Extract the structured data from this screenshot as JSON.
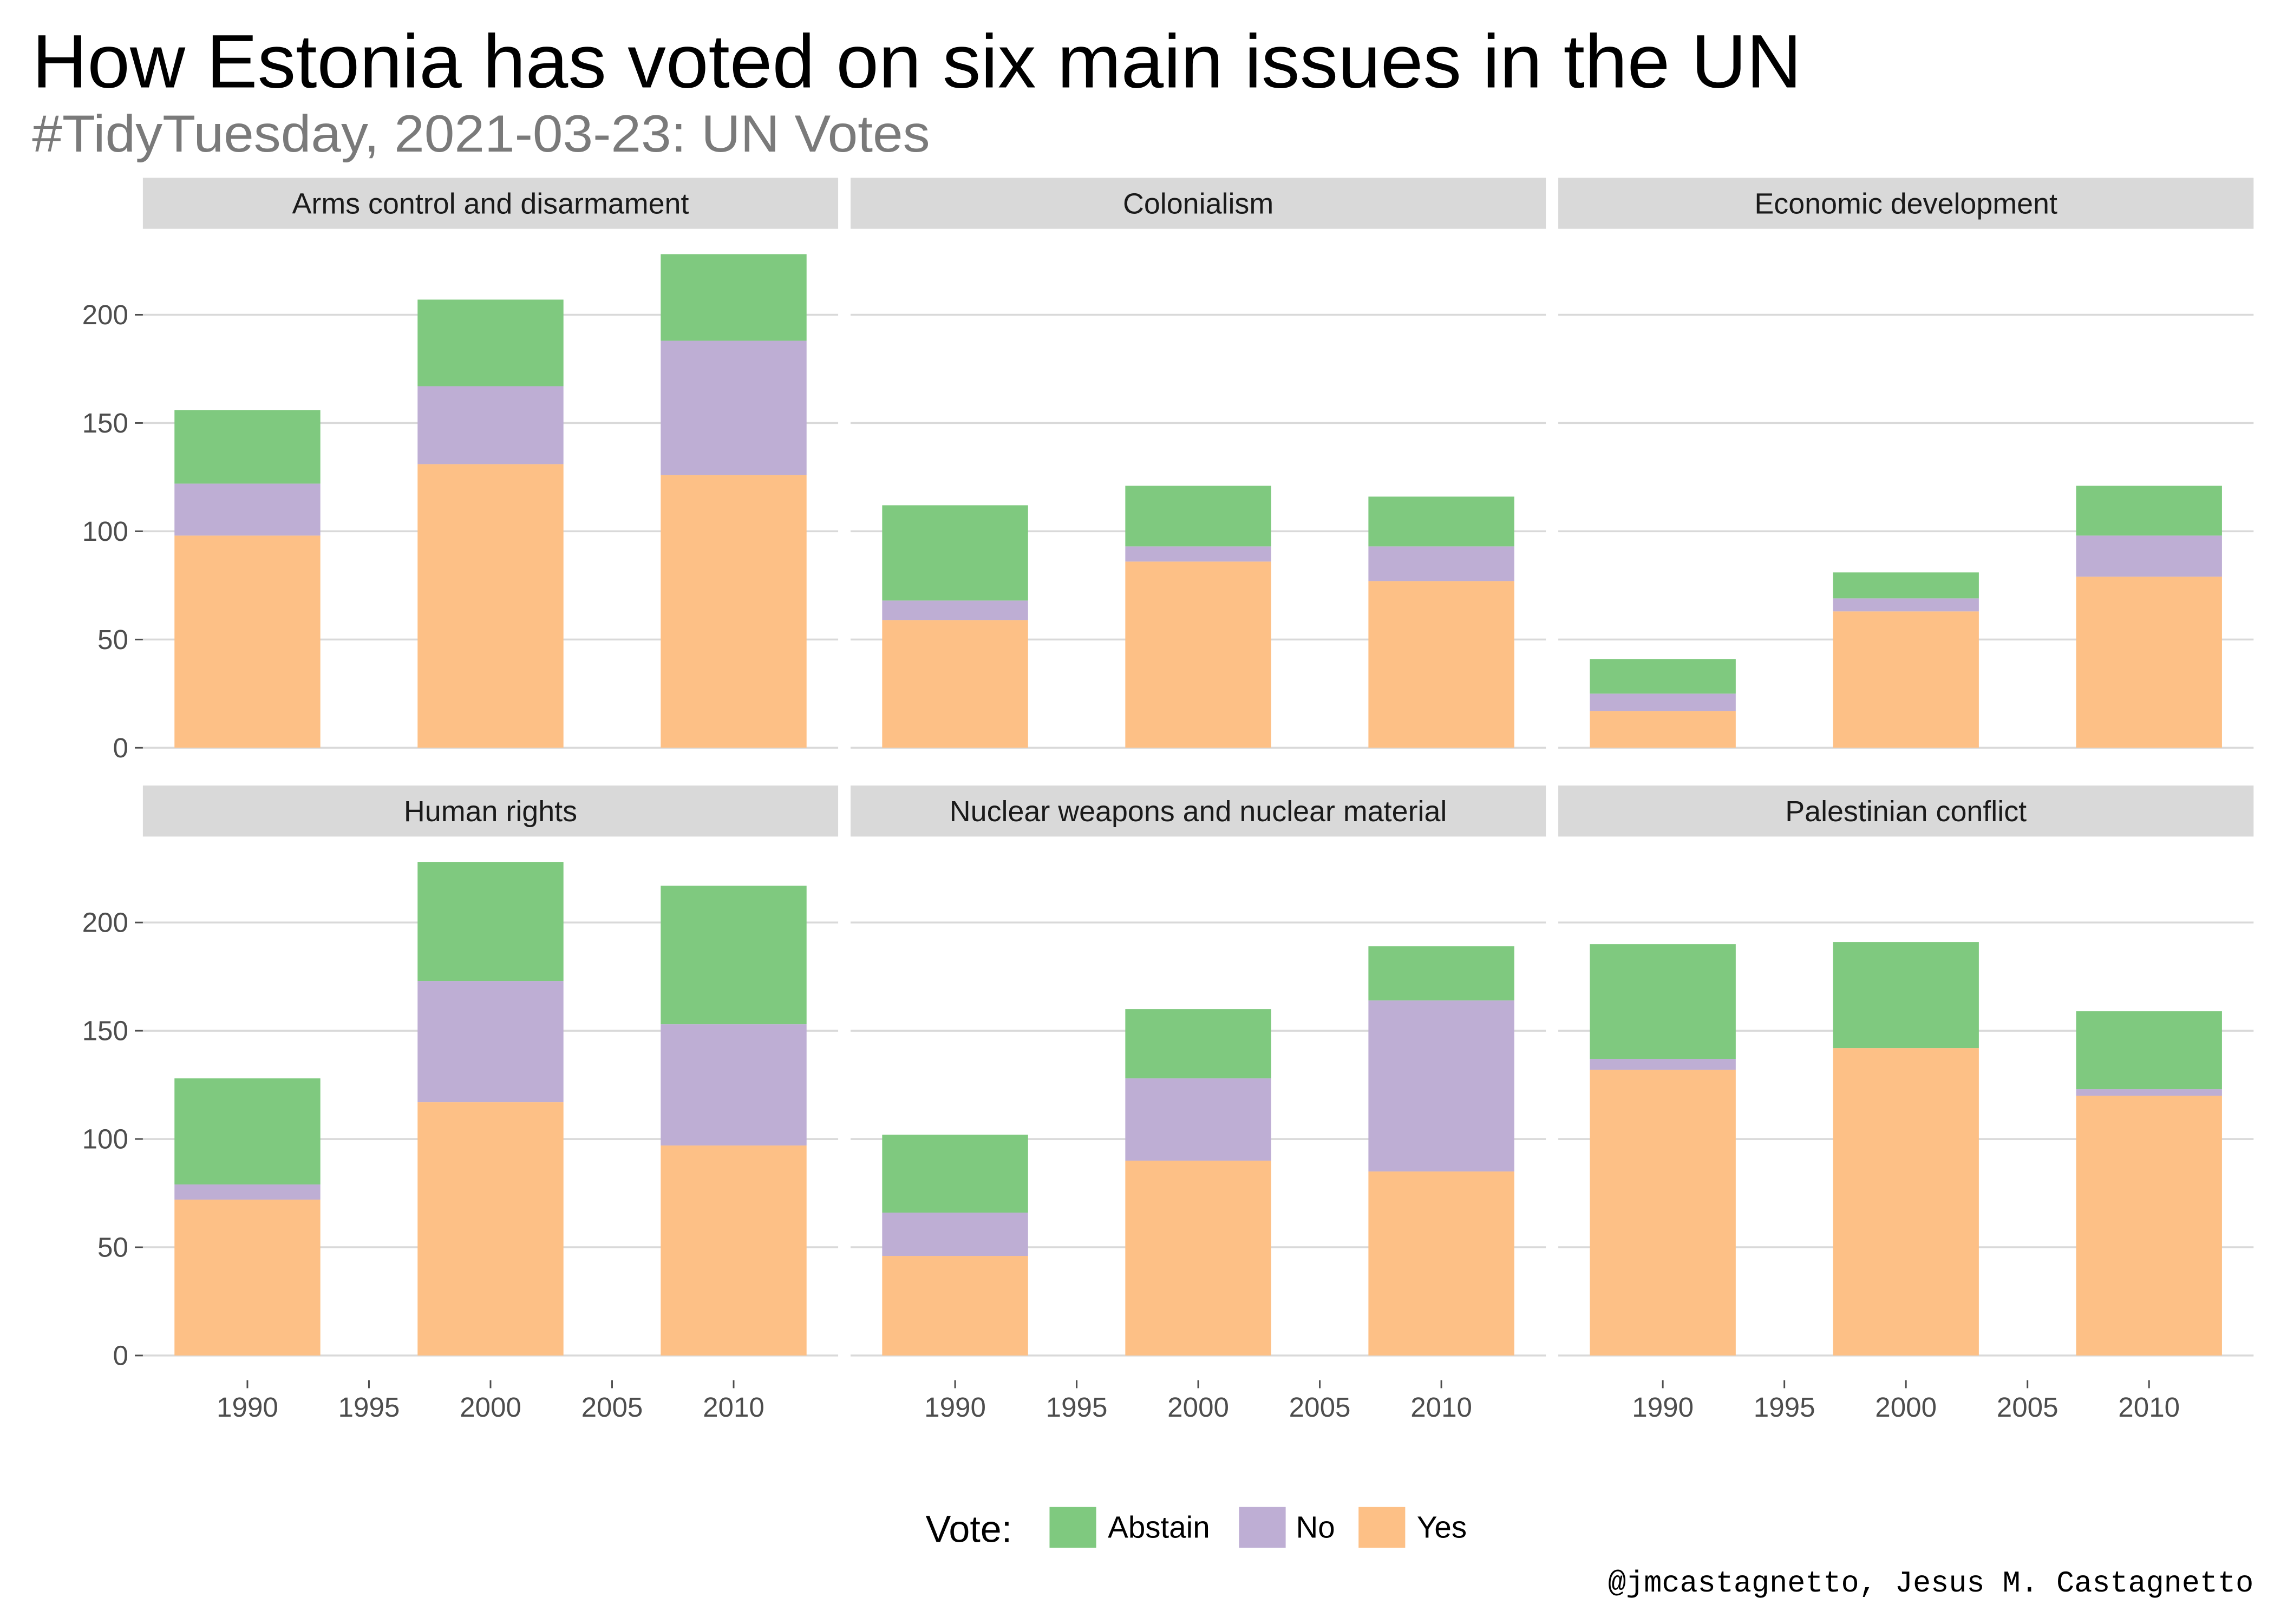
{
  "chart_data": {
    "type": "bar",
    "stacked": true,
    "faceted": true,
    "title": "How Estonia has voted on six main issues in the UN",
    "subtitle": "#TidyTuesday, 2021-03-23: UN Votes",
    "caption": "@jmcastagnetto, Jesus M. Castagnetto",
    "x": [
      1990,
      2000,
      2010
    ],
    "xticks": [
      1990,
      1995,
      2000,
      2005,
      2010
    ],
    "yticks": [
      0,
      50,
      100,
      150,
      200
    ],
    "xlim": [
      1985.7,
      2014.3
    ],
    "ylim": [
      -11.4,
      239.7
    ],
    "grid": "horizontal major",
    "legend": {
      "title": "Vote:",
      "position": "bottom",
      "entries": [
        "Abstain",
        "No",
        "Yes"
      ]
    },
    "colors": {
      "Abstain": "#7FC97F",
      "No": "#BEAED4",
      "Yes": "#FDC086",
      "strip": "#D9D9D9"
    },
    "panels": [
      {
        "issue": "Arms control and disarmament",
        "series": [
          {
            "name": "Yes",
            "values": [
              98,
              131,
              126
            ]
          },
          {
            "name": "No",
            "values": [
              24,
              36,
              62
            ]
          },
          {
            "name": "Abstain",
            "values": [
              34,
              40,
              40
            ]
          }
        ]
      },
      {
        "issue": "Colonialism",
        "series": [
          {
            "name": "Yes",
            "values": [
              59,
              86,
              77
            ]
          },
          {
            "name": "No",
            "values": [
              9,
              7,
              16
            ]
          },
          {
            "name": "Abstain",
            "values": [
              44,
              28,
              23
            ]
          }
        ]
      },
      {
        "issue": "Economic development",
        "series": [
          {
            "name": "Yes",
            "values": [
              17,
              63,
              79
            ]
          },
          {
            "name": "No",
            "values": [
              8,
              6,
              19
            ]
          },
          {
            "name": "Abstain",
            "values": [
              16,
              12,
              23
            ]
          }
        ]
      },
      {
        "issue": "Human rights",
        "series": [
          {
            "name": "Yes",
            "values": [
              72,
              117,
              97
            ]
          },
          {
            "name": "No",
            "values": [
              7,
              56,
              56
            ]
          },
          {
            "name": "Abstain",
            "values": [
              49,
              55,
              64
            ]
          }
        ]
      },
      {
        "issue": "Nuclear weapons and nuclear material",
        "series": [
          {
            "name": "Yes",
            "values": [
              46,
              90,
              85
            ]
          },
          {
            "name": "No",
            "values": [
              20,
              38,
              79
            ]
          },
          {
            "name": "Abstain",
            "values": [
              36,
              32,
              25
            ]
          }
        ]
      },
      {
        "issue": "Palestinian conflict",
        "series": [
          {
            "name": "Yes",
            "values": [
              132,
              142,
              120
            ]
          },
          {
            "name": "No",
            "values": [
              5,
              0,
              3
            ]
          },
          {
            "name": "Abstain",
            "values": [
              53,
              49,
              36
            ]
          }
        ]
      }
    ]
  }
}
